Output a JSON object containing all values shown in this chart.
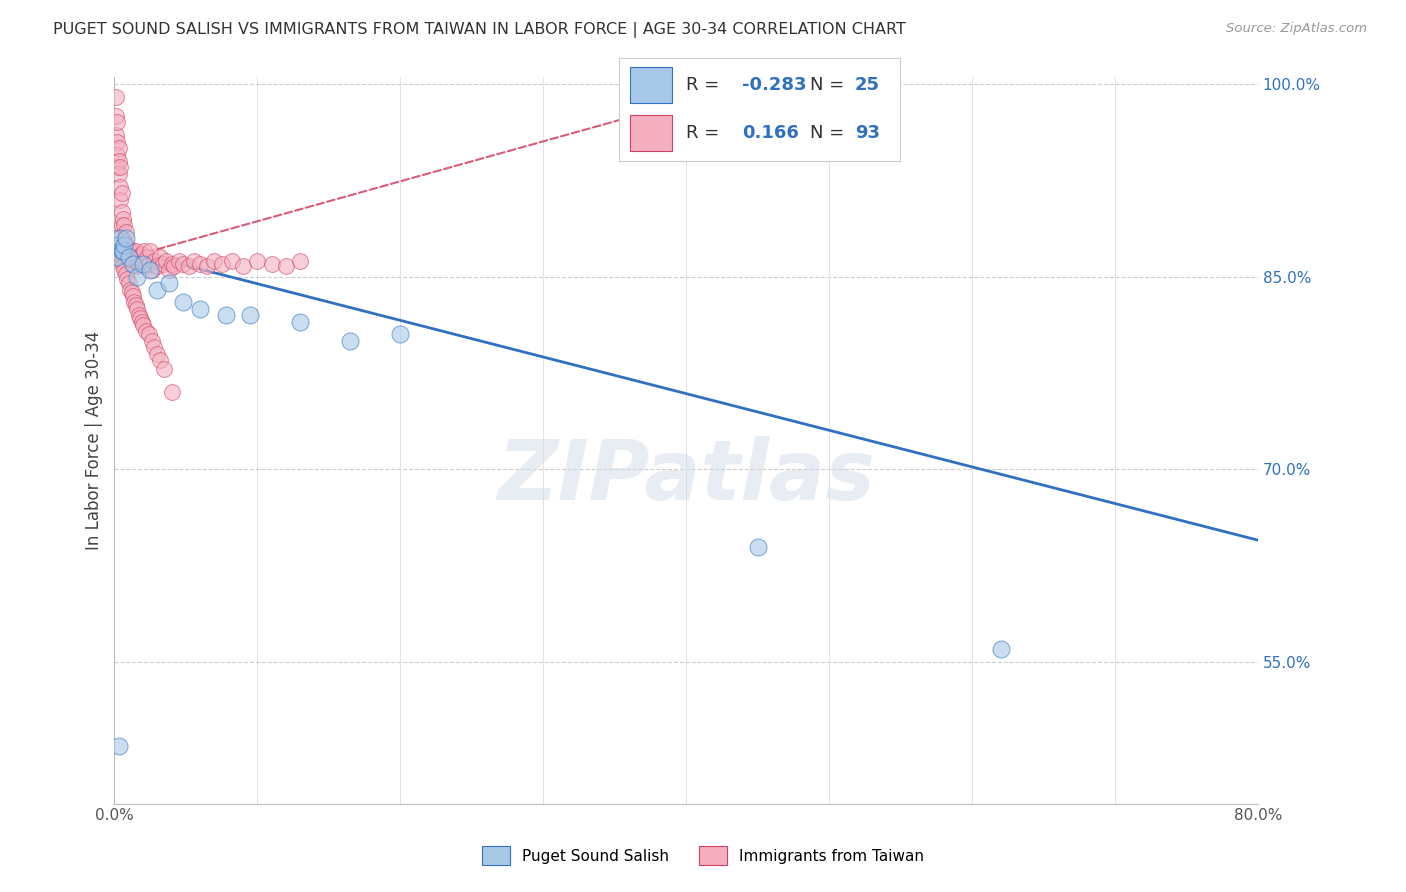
{
  "title": "PUGET SOUND SALISH VS IMMIGRANTS FROM TAIWAN IN LABOR FORCE | AGE 30-34 CORRELATION CHART",
  "source": "Source: ZipAtlas.com",
  "ylabel": "In Labor Force | Age 30-34",
  "x_min": 0.0,
  "x_max": 0.8,
  "y_min": 0.44,
  "y_max": 1.005,
  "x_ticks": [
    0.0,
    0.1,
    0.2,
    0.3,
    0.4,
    0.5,
    0.6,
    0.7,
    0.8
  ],
  "y_ticks_right": [
    0.55,
    0.7,
    0.85,
    1.0
  ],
  "y_tick_labels_right": [
    "55.0%",
    "70.0%",
    "85.0%",
    "100.0%"
  ],
  "blue_color": "#a8c8e8",
  "pink_color": "#f4b0c0",
  "blue_line_color": "#3070c0",
  "pink_line_color": "#d04060",
  "legend_R1": "-0.283",
  "legend_N1": "25",
  "legend_R2": "0.166",
  "legend_N2": "93",
  "watermark": "ZIPatlas",
  "blue_trend_x": [
    0.0,
    0.8
  ],
  "blue_trend_y": [
    0.873,
    0.645
  ],
  "pink_trend_x": [
    0.0,
    0.46
  ],
  "pink_trend_y": [
    0.862,
    1.005
  ],
  "blue_x": [
    0.001,
    0.002,
    0.003,
    0.004,
    0.005,
    0.006,
    0.007,
    0.008,
    0.01,
    0.013,
    0.016,
    0.02,
    0.025,
    0.03,
    0.038,
    0.048,
    0.06,
    0.078,
    0.095,
    0.13,
    0.165,
    0.2,
    0.45,
    0.62,
    0.003
  ],
  "blue_y": [
    0.875,
    0.865,
    0.875,
    0.88,
    0.87,
    0.87,
    0.875,
    0.88,
    0.865,
    0.86,
    0.85,
    0.86,
    0.855,
    0.84,
    0.845,
    0.83,
    0.825,
    0.82,
    0.82,
    0.815,
    0.8,
    0.805,
    0.64,
    0.56,
    0.485
  ],
  "pink_x": [
    0.001,
    0.001,
    0.001,
    0.002,
    0.002,
    0.002,
    0.002,
    0.003,
    0.003,
    0.003,
    0.004,
    0.004,
    0.004,
    0.005,
    0.005,
    0.005,
    0.006,
    0.006,
    0.007,
    0.007,
    0.008,
    0.008,
    0.009,
    0.009,
    0.01,
    0.01,
    0.011,
    0.012,
    0.012,
    0.013,
    0.014,
    0.015,
    0.016,
    0.017,
    0.018,
    0.019,
    0.02,
    0.021,
    0.022,
    0.023,
    0.024,
    0.025,
    0.026,
    0.028,
    0.03,
    0.032,
    0.034,
    0.036,
    0.038,
    0.04,
    0.042,
    0.045,
    0.048,
    0.052,
    0.056,
    0.06,
    0.065,
    0.07,
    0.075,
    0.082,
    0.09,
    0.1,
    0.11,
    0.12,
    0.13,
    0.001,
    0.002,
    0.003,
    0.004,
    0.005,
    0.006,
    0.007,
    0.008,
    0.009,
    0.01,
    0.011,
    0.012,
    0.013,
    0.014,
    0.015,
    0.016,
    0.017,
    0.018,
    0.019,
    0.02,
    0.022,
    0.024,
    0.026,
    0.028,
    0.03,
    0.032,
    0.035,
    0.04
  ],
  "pink_y": [
    0.99,
    0.975,
    0.96,
    0.97,
    0.955,
    0.945,
    0.935,
    0.95,
    0.94,
    0.93,
    0.935,
    0.92,
    0.91,
    0.915,
    0.9,
    0.89,
    0.895,
    0.88,
    0.89,
    0.875,
    0.885,
    0.87,
    0.875,
    0.865,
    0.87,
    0.86,
    0.868,
    0.86,
    0.87,
    0.865,
    0.862,
    0.87,
    0.858,
    0.865,
    0.86,
    0.868,
    0.862,
    0.87,
    0.858,
    0.865,
    0.86,
    0.87,
    0.855,
    0.862,
    0.858,
    0.865,
    0.86,
    0.862,
    0.855,
    0.86,
    0.858,
    0.862,
    0.86,
    0.858,
    0.862,
    0.86,
    0.858,
    0.862,
    0.86,
    0.862,
    0.858,
    0.862,
    0.86,
    0.858,
    0.862,
    0.88,
    0.875,
    0.87,
    0.868,
    0.862,
    0.858,
    0.855,
    0.852,
    0.848,
    0.845,
    0.84,
    0.838,
    0.835,
    0.83,
    0.828,
    0.825,
    0.82,
    0.818,
    0.815,
    0.812,
    0.808,
    0.805,
    0.8,
    0.795,
    0.79,
    0.785,
    0.778,
    0.76
  ]
}
